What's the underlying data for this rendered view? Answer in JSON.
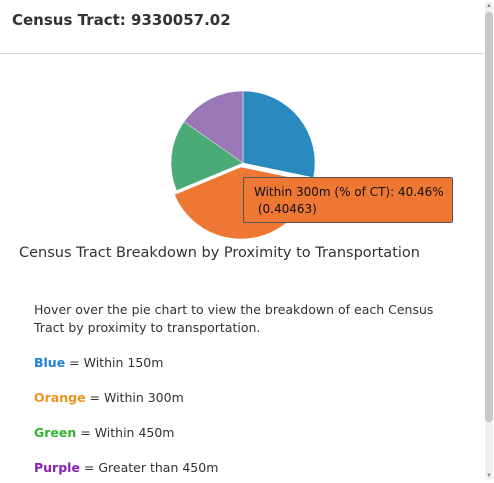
{
  "popup": {
    "title": "Census Tract: 9330057.02"
  },
  "chart_data": {
    "type": "pie",
    "title": "Census Tract Breakdown by Proximity to Transportation",
    "slices": [
      {
        "label": "Within 150m (% of CT)",
        "value": 0.2826,
        "color": "#2a8ac0"
      },
      {
        "label": "Within 300m (% of CT)",
        "value": 0.40463,
        "color": "#ee7733"
      },
      {
        "label": "Within 450m (% of CT)",
        "value": 0.16,
        "color": "#4aab76"
      },
      {
        "label": "Greater than 450m (% of CT)",
        "value": 0.15277,
        "color": "#9a78b8"
      }
    ]
  },
  "tooltip": {
    "line1": "Within 300m (% of CT): 40.46%",
    "line2": " (0.40463)"
  },
  "description": {
    "intro": "Hover over the pie chart to view the breakdown of each Census Tract by proximity to transportation."
  },
  "legend": [
    {
      "key": "Blue",
      "text": " = Within 150m",
      "color": "#1e7fd8"
    },
    {
      "key": "Orange",
      "text": " = Within 300m",
      "color": "#f2921d"
    },
    {
      "key": "Green",
      "text": " = Within 450m",
      "color": "#32b332"
    },
    {
      "key": "Purple",
      "text": " = Greater than 450m",
      "color": "#8a22b0"
    }
  ]
}
